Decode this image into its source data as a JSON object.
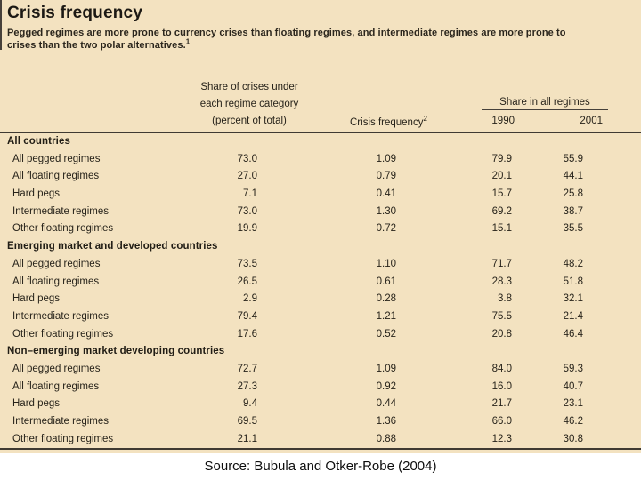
{
  "figure": {
    "title": "Crisis frequency",
    "note_line1": "Pegged regimes are more prone to currency crises than floating regimes, and intermediate regimes are more prone to",
    "note_line2": "crises than the two polar alternatives.",
    "note_footnote_mark": "1"
  },
  "table": {
    "headers": {
      "share_line1": "Share of crises under",
      "share_line2": "each regime category",
      "share_line3": "(percent of total)",
      "crisis_frequency": "Crisis frequency",
      "crisis_frequency_footnote_mark": "2",
      "share_in_all_regimes": "Share in all regimes",
      "year_1990": "1990",
      "year_2001": "2001"
    },
    "sections": [
      {
        "header": "All countries",
        "rows": [
          {
            "label": "All pegged regimes",
            "share": "73.0",
            "frequency": "1.09",
            "y1990": "79.9",
            "y2001": "55.9"
          },
          {
            "label": "All floating regimes",
            "share": "27.0",
            "frequency": "0.79",
            "y1990": "20.1",
            "y2001": "44.1"
          },
          {
            "label": "Hard pegs",
            "share": "7.1",
            "frequency": "0.41",
            "y1990": "15.7",
            "y2001": "25.8"
          },
          {
            "label": "Intermediate regimes",
            "share": "73.0",
            "frequency": "1.30",
            "y1990": "69.2",
            "y2001": "38.7"
          },
          {
            "label": "Other floating regimes",
            "share": "19.9",
            "frequency": "0.72",
            "y1990": "15.1",
            "y2001": "35.5"
          }
        ]
      },
      {
        "header": "Emerging market and developed countries",
        "rows": [
          {
            "label": "All pegged regimes",
            "share": "73.5",
            "frequency": "1.10",
            "y1990": "71.7",
            "y2001": "48.2"
          },
          {
            "label": "All floating regimes",
            "share": "26.5",
            "frequency": "0.61",
            "y1990": "28.3",
            "y2001": "51.8"
          },
          {
            "label": "Hard pegs",
            "share": "2.9",
            "frequency": "0.28",
            "y1990": "3.8",
            "y2001": "32.1"
          },
          {
            "label": "Intermediate regimes",
            "share": "79.4",
            "frequency": "1.21",
            "y1990": "75.5",
            "y2001": "21.4"
          },
          {
            "label": "Other floating regimes",
            "share": "17.6",
            "frequency": "0.52",
            "y1990": "20.8",
            "y2001": "46.4"
          }
        ]
      },
      {
        "header": "Non–emerging market developing countries",
        "rows": [
          {
            "label": "All pegged regimes",
            "share": "72.7",
            "frequency": "1.09",
            "y1990": "84.0",
            "y2001": "59.3"
          },
          {
            "label": "All floating regimes",
            "share": "27.3",
            "frequency": "0.92",
            "y1990": "16.0",
            "y2001": "40.7"
          },
          {
            "label": "Hard pegs",
            "share": "9.4",
            "frequency": "0.44",
            "y1990": "21.7",
            "y2001": "23.1"
          },
          {
            "label": "Intermediate regimes",
            "share": "69.5",
            "frequency": "1.36",
            "y1990": "66.0",
            "y2001": "46.2"
          },
          {
            "label": "Other floating regimes",
            "share": "21.1",
            "frequency": "0.88",
            "y1990": "12.3",
            "y2001": "30.8"
          }
        ]
      }
    ]
  },
  "caption": {
    "source": "Source: Bubula and Otker-Robe (2004)"
  },
  "colors": {
    "panel_background": "#f3e2c0",
    "ink": "#27231a",
    "rule": "#3f3a32",
    "page_background": "#ffffff"
  }
}
